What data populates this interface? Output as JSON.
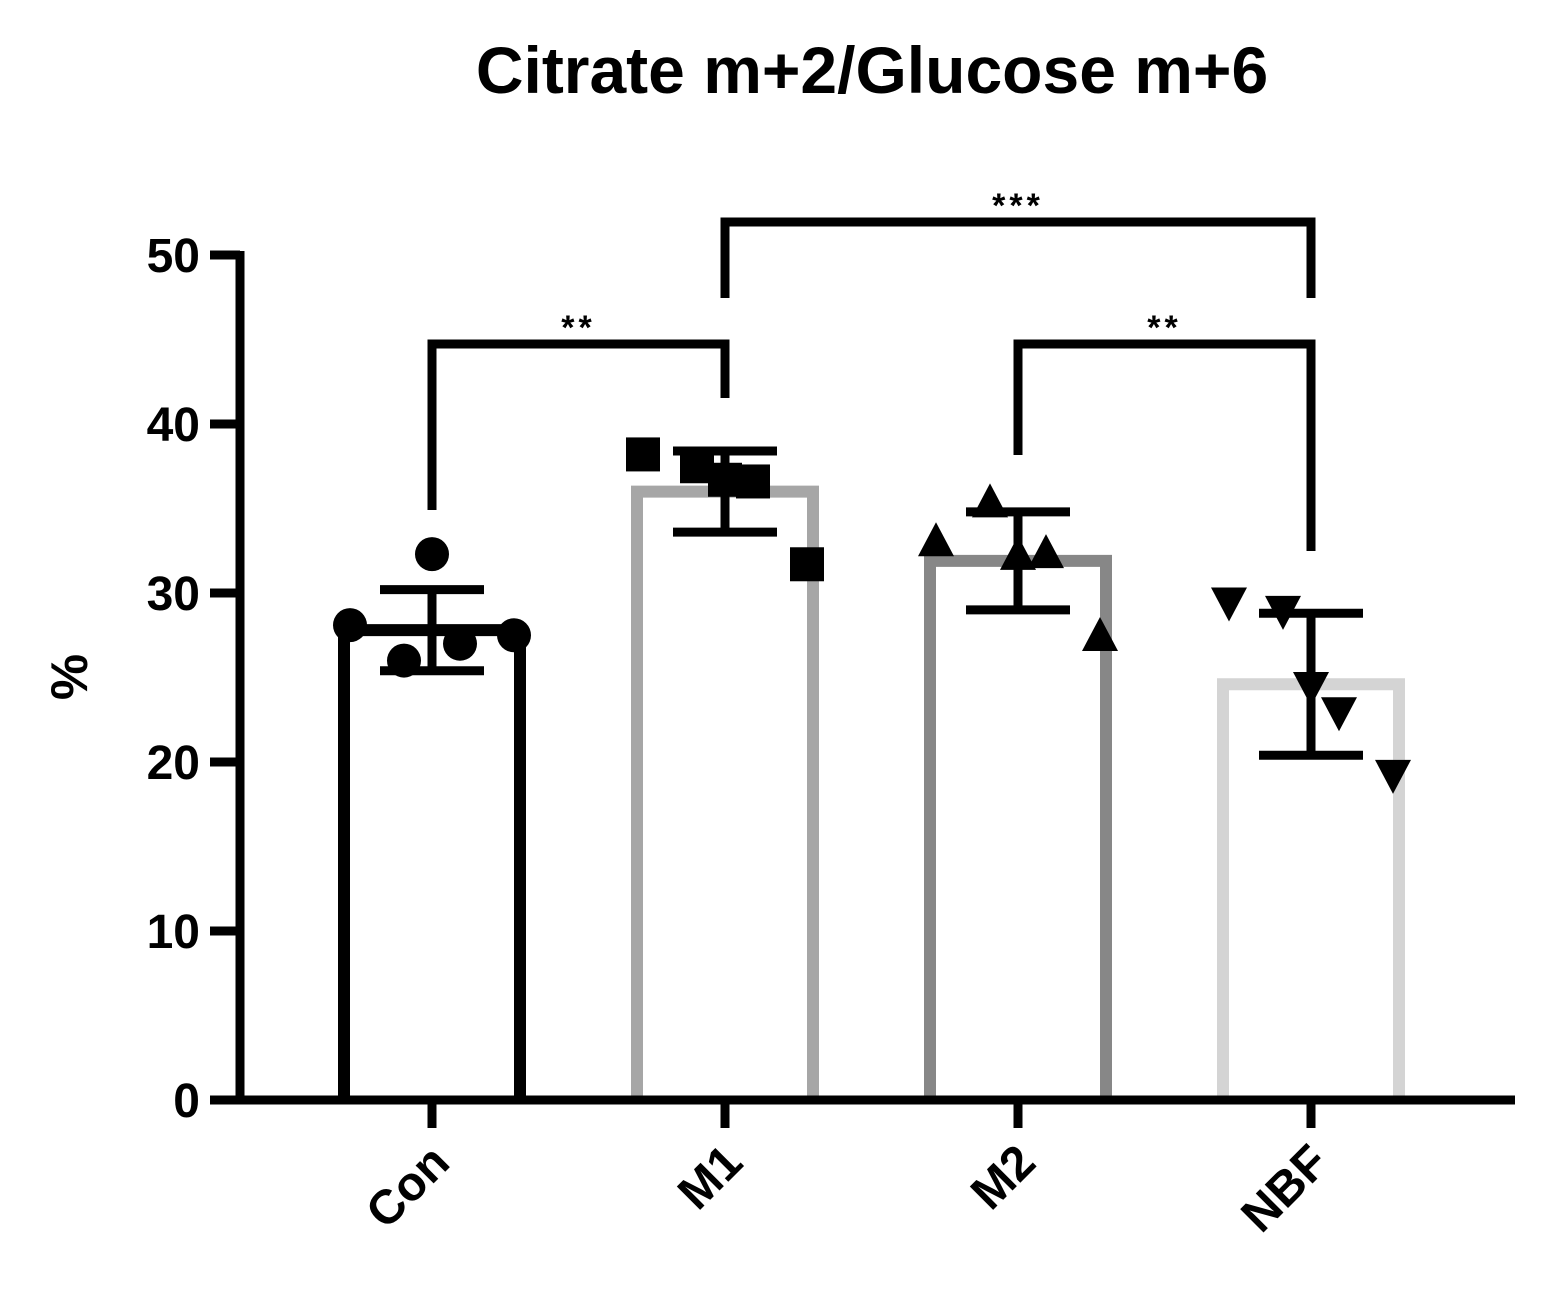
{
  "chart_data": {
    "type": "bar",
    "title": "Citrate m+2/Glucose m+6",
    "xlabel": "",
    "ylabel": "%",
    "ylim": [
      0,
      50
    ],
    "yticks": [
      0,
      10,
      20,
      30,
      40,
      50
    ],
    "yticks_labels": [
      "0",
      "10",
      "20",
      "30",
      "40",
      "50"
    ],
    "grid": false,
    "legend": "none",
    "categories": [
      "Con",
      "M1",
      "M2",
      "NBF"
    ],
    "values": [
      27.8,
      36.0,
      31.9,
      24.6
    ],
    "errors": [
      2.4,
      2.4,
      2.9,
      4.2
    ],
    "colors": [
      "#000000",
      "#a6a6a6",
      "#878787",
      "#d4d4d4"
    ],
    "markers": [
      "circle",
      "square",
      "triangle-up",
      "triangle-down"
    ],
    "points": [
      [
        28.1,
        26.0,
        32.3,
        27.0,
        27.5
      ],
      [
        38.2,
        37.5,
        36.7,
        36.6,
        31.7
      ],
      [
        33.0,
        35.3,
        32.2,
        32.3,
        27.4
      ],
      [
        29.5,
        29.0,
        24.5,
        23.0,
        19.3
      ]
    ],
    "significance": [
      {
        "from": "Con",
        "to": "M1",
        "label": "**"
      },
      {
        "from": "M1",
        "to": "NBF",
        "label": "***"
      },
      {
        "from": "M2",
        "to": "NBF",
        "label": "**"
      }
    ]
  }
}
